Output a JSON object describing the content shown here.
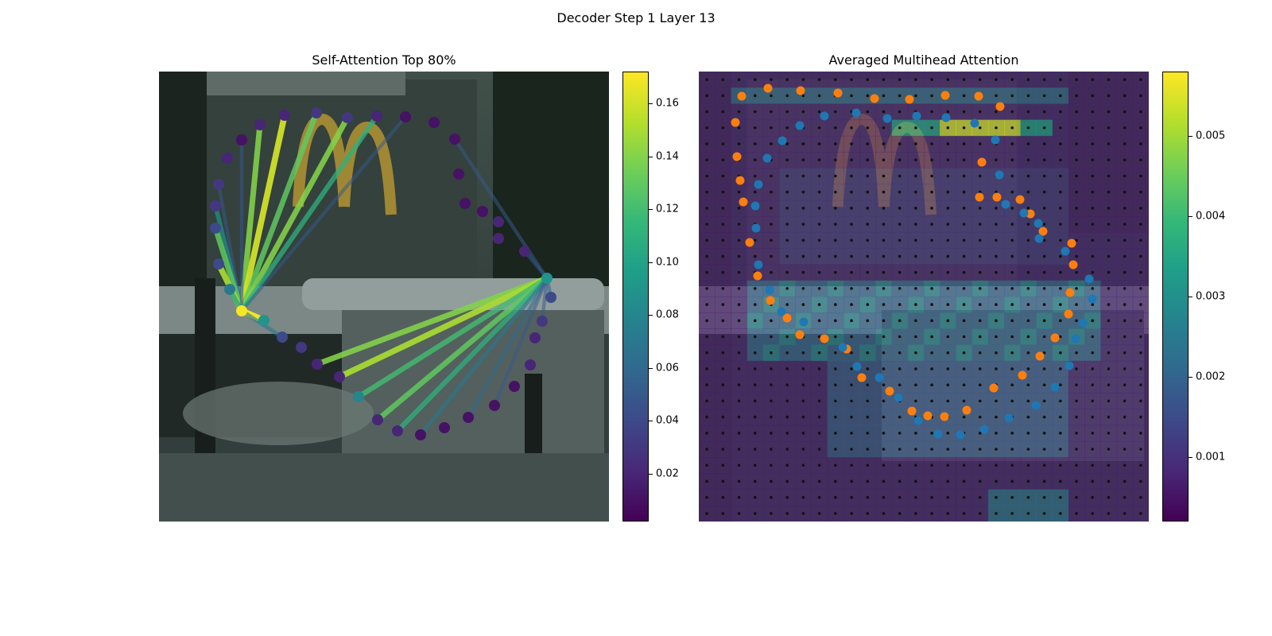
{
  "suptitle": "Decoder Step 1 Layer 13",
  "chart_data": [
    {
      "type": "scatter",
      "panel": "left",
      "title": "Self-Attention Top 80%",
      "colormap": "viridis",
      "colorbar": {
        "min": 0.002,
        "max": 0.172,
        "ticks": [
          "0.02",
          "0.04",
          "0.06",
          "0.08",
          "0.10",
          "0.12",
          "0.14",
          "0.16"
        ]
      },
      "query_points": [
        {
          "x": 104,
          "y": 301
        },
        {
          "x": 488,
          "y": 260
        }
      ],
      "points": [
        {
          "x": 104,
          "y": 301,
          "v": 0.17
        },
        {
          "x": 132,
          "y": 313,
          "v": 0.09
        },
        {
          "x": 155,
          "y": 334,
          "v": 0.04
        },
        {
          "x": 179,
          "y": 347,
          "v": 0.03
        },
        {
          "x": 199,
          "y": 368,
          "v": 0.02
        },
        {
          "x": 227,
          "y": 384,
          "v": 0.02
        },
        {
          "x": 251,
          "y": 409,
          "v": 0.08
        },
        {
          "x": 275,
          "y": 438,
          "v": 0.02
        },
        {
          "x": 300,
          "y": 452,
          "v": 0.02
        },
        {
          "x": 329,
          "y": 457,
          "v": 0.01
        },
        {
          "x": 359,
          "y": 448,
          "v": 0.01
        },
        {
          "x": 389,
          "y": 435,
          "v": 0.01
        },
        {
          "x": 422,
          "y": 420,
          "v": 0.01
        },
        {
          "x": 447,
          "y": 396,
          "v": 0.01
        },
        {
          "x": 467,
          "y": 369,
          "v": 0.02
        },
        {
          "x": 473,
          "y": 335,
          "v": 0.02
        },
        {
          "x": 482,
          "y": 314,
          "v": 0.03
        },
        {
          "x": 493,
          "y": 284,
          "v": 0.04
        },
        {
          "x": 488,
          "y": 260,
          "v": 0.09
        },
        {
          "x": 460,
          "y": 226,
          "v": 0.02
        },
        {
          "x": 427,
          "y": 210,
          "v": 0.02
        },
        {
          "x": 427,
          "y": 189,
          "v": 0.02
        },
        {
          "x": 407,
          "y": 176,
          "v": 0.01
        },
        {
          "x": 385,
          "y": 166,
          "v": 0.01
        },
        {
          "x": 377,
          "y": 129,
          "v": 0.01
        },
        {
          "x": 372,
          "y": 85,
          "v": 0.01
        },
        {
          "x": 346,
          "y": 64,
          "v": 0.01
        },
        {
          "x": 310,
          "y": 57,
          "v": 0.01
        },
        {
          "x": 274,
          "y": 56,
          "v": 0.02
        },
        {
          "x": 237,
          "y": 58,
          "v": 0.03
        },
        {
          "x": 198,
          "y": 52,
          "v": 0.03
        },
        {
          "x": 158,
          "y": 55,
          "v": 0.02
        },
        {
          "x": 127,
          "y": 67,
          "v": 0.02
        },
        {
          "x": 104,
          "y": 86,
          "v": 0.01
        },
        {
          "x": 86,
          "y": 109,
          "v": 0.02
        },
        {
          "x": 75,
          "y": 142,
          "v": 0.03
        },
        {
          "x": 71,
          "y": 169,
          "v": 0.03
        },
        {
          "x": 71,
          "y": 197,
          "v": 0.04
        },
        {
          "x": 75,
          "y": 242,
          "v": 0.04
        },
        {
          "x": 89,
          "y": 274,
          "v": 0.07
        }
      ],
      "edges": [
        {
          "from": [
            104,
            301
          ],
          "to": [
            127,
            67
          ],
          "v": 0.14
        },
        {
          "from": [
            104,
            301
          ],
          "to": [
            158,
            55
          ],
          "v": 0.16
        },
        {
          "from": [
            104,
            301
          ],
          "to": [
            198,
            52
          ],
          "v": 0.13
        },
        {
          "from": [
            104,
            301
          ],
          "to": [
            237,
            58
          ],
          "v": 0.14
        },
        {
          "from": [
            104,
            301
          ],
          "to": [
            274,
            56
          ],
          "v": 0.11
        },
        {
          "from": [
            104,
            301
          ],
          "to": [
            310,
            57
          ],
          "v": 0.05
        },
        {
          "from": [
            104,
            301
          ],
          "to": [
            75,
            142
          ],
          "v": 0.05
        },
        {
          "from": [
            104,
            301
          ],
          "to": [
            71,
            169
          ],
          "v": 0.09
        },
        {
          "from": [
            104,
            301
          ],
          "to": [
            71,
            197
          ],
          "v": 0.13
        },
        {
          "from": [
            104,
            301
          ],
          "to": [
            75,
            242
          ],
          "v": 0.15
        },
        {
          "from": [
            104,
            301
          ],
          "to": [
            89,
            274
          ],
          "v": 0.1
        },
        {
          "from": [
            104,
            301
          ],
          "to": [
            104,
            86
          ],
          "v": 0.05
        },
        {
          "from": [
            104,
            301
          ],
          "to": [
            132,
            313
          ],
          "v": 0.17
        },
        {
          "from": [
            104,
            301
          ],
          "to": [
            155,
            334
          ],
          "v": 0.07
        },
        {
          "from": [
            488,
            260
          ],
          "to": [
            199,
            368
          ],
          "v": 0.14
        },
        {
          "from": [
            488,
            260
          ],
          "to": [
            227,
            384
          ],
          "v": 0.15
        },
        {
          "from": [
            488,
            260
          ],
          "to": [
            251,
            409
          ],
          "v": 0.12
        },
        {
          "from": [
            488,
            260
          ],
          "to": [
            275,
            438
          ],
          "v": 0.13
        },
        {
          "from": [
            488,
            260
          ],
          "to": [
            300,
            452
          ],
          "v": 0.11
        },
        {
          "from": [
            488,
            260
          ],
          "to": [
            329,
            457
          ],
          "v": 0.07
        },
        {
          "from": [
            488,
            260
          ],
          "to": [
            389,
            435
          ],
          "v": 0.06
        },
        {
          "from": [
            488,
            260
          ],
          "to": [
            422,
            420
          ],
          "v": 0.05
        },
        {
          "from": [
            488,
            260
          ],
          "to": [
            460,
            226
          ],
          "v": 0.05
        },
        {
          "from": [
            488,
            260
          ],
          "to": [
            372,
            85
          ],
          "v": 0.05
        },
        {
          "from": [
            488,
            260
          ],
          "to": [
            493,
            284
          ],
          "v": 0.06
        },
        {
          "from": [
            488,
            260
          ],
          "to": [
            482,
            314
          ],
          "v": 0.05
        }
      ]
    },
    {
      "type": "heatmap",
      "panel": "right",
      "title": "Averaged Multihead Attention",
      "colormap": "viridis",
      "colorbar": {
        "min": 0.0002,
        "max": 0.0058,
        "ticks": [
          "0.001",
          "0.002",
          "0.003",
          "0.004",
          "0.005"
        ]
      },
      "grid": {
        "rows": 28,
        "cols": 28
      },
      "series": [
        {
          "color": "#ff7f0e",
          "points": [
            {
              "x": 54,
              "y": 31
            },
            {
              "x": 87,
              "y": 21
            },
            {
              "x": 128,
              "y": 24
            },
            {
              "x": 175,
              "y": 27
            },
            {
              "x": 221,
              "y": 34
            },
            {
              "x": 265,
              "y": 35
            },
            {
              "x": 310,
              "y": 30
            },
            {
              "x": 352,
              "y": 31
            },
            {
              "x": 379,
              "y": 44
            },
            {
              "x": 46,
              "y": 64
            },
            {
              "x": 48,
              "y": 107
            },
            {
              "x": 52,
              "y": 137
            },
            {
              "x": 56,
              "y": 164
            },
            {
              "x": 64,
              "y": 215
            },
            {
              "x": 74,
              "y": 257
            },
            {
              "x": 90,
              "y": 288
            },
            {
              "x": 111,
              "y": 310
            },
            {
              "x": 127,
              "y": 331
            },
            {
              "x": 158,
              "y": 336
            },
            {
              "x": 186,
              "y": 349
            },
            {
              "x": 205,
              "y": 385
            },
            {
              "x": 240,
              "y": 402
            },
            {
              "x": 268,
              "y": 427
            },
            {
              "x": 288,
              "y": 433
            },
            {
              "x": 309,
              "y": 434
            },
            {
              "x": 337,
              "y": 426
            },
            {
              "x": 371,
              "y": 398
            },
            {
              "x": 407,
              "y": 382
            },
            {
              "x": 429,
              "y": 358
            },
            {
              "x": 448,
              "y": 335
            },
            {
              "x": 465,
              "y": 305
            },
            {
              "x": 467,
              "y": 278
            },
            {
              "x": 471,
              "y": 243
            },
            {
              "x": 469,
              "y": 216
            },
            {
              "x": 433,
              "y": 201
            },
            {
              "x": 417,
              "y": 179
            },
            {
              "x": 404,
              "y": 161
            },
            {
              "x": 375,
              "y": 158
            },
            {
              "x": 353,
              "y": 158
            },
            {
              "x": 356,
              "y": 114
            }
          ]
        },
        {
          "color": "#1f77b4",
          "points": [
            {
              "x": 127,
              "y": 68
            },
            {
              "x": 158,
              "y": 56
            },
            {
              "x": 198,
              "y": 52
            },
            {
              "x": 237,
              "y": 59
            },
            {
              "x": 274,
              "y": 56
            },
            {
              "x": 311,
              "y": 58
            },
            {
              "x": 347,
              "y": 65
            },
            {
              "x": 373,
              "y": 86
            },
            {
              "x": 378,
              "y": 130
            },
            {
              "x": 386,
              "y": 167
            },
            {
              "x": 409,
              "y": 178
            },
            {
              "x": 427,
              "y": 191
            },
            {
              "x": 428,
              "y": 210
            },
            {
              "x": 461,
              "y": 226
            },
            {
              "x": 491,
              "y": 261
            },
            {
              "x": 495,
              "y": 286
            },
            {
              "x": 483,
              "y": 316
            },
            {
              "x": 474,
              "y": 336
            },
            {
              "x": 466,
              "y": 370
            },
            {
              "x": 448,
              "y": 397
            },
            {
              "x": 424,
              "y": 420
            },
            {
              "x": 390,
              "y": 436
            },
            {
              "x": 359,
              "y": 450
            },
            {
              "x": 329,
              "y": 457
            },
            {
              "x": 301,
              "y": 456
            },
            {
              "x": 276,
              "y": 439
            },
            {
              "x": 251,
              "y": 410
            },
            {
              "x": 227,
              "y": 385
            },
            {
              "x": 199,
              "y": 371
            },
            {
              "x": 181,
              "y": 347
            },
            {
              "x": 132,
              "y": 315
            },
            {
              "x": 104,
              "y": 302
            },
            {
              "x": 89,
              "y": 275
            },
            {
              "x": 75,
              "y": 243
            },
            {
              "x": 72,
              "y": 197
            },
            {
              "x": 71,
              "y": 169
            },
            {
              "x": 75,
              "y": 142
            },
            {
              "x": 86,
              "y": 109
            },
            {
              "x": 105,
              "y": 87
            }
          ]
        }
      ]
    }
  ]
}
